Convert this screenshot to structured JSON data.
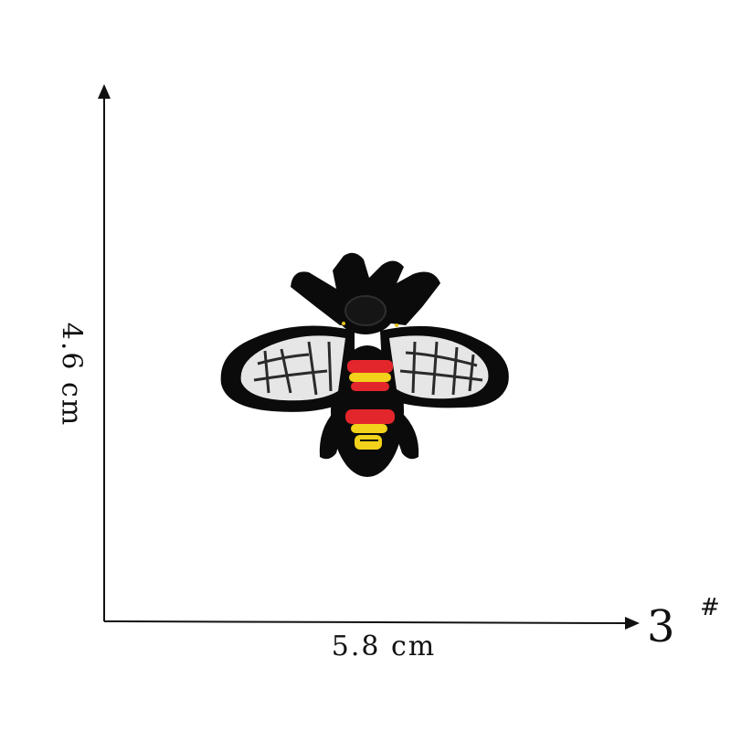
{
  "dimensions": {
    "width_label": "5.8 cm",
    "height_label": "4.6 cm"
  },
  "model": {
    "number": "3",
    "symbol": "#"
  },
  "patch": {
    "subject": "embroidered bee patch",
    "colors": {
      "outline": "#0b0b0b",
      "wing": "#e8e8e8",
      "stripe_red": "#e3262b",
      "stripe_yellow": "#f2d21a"
    }
  }
}
